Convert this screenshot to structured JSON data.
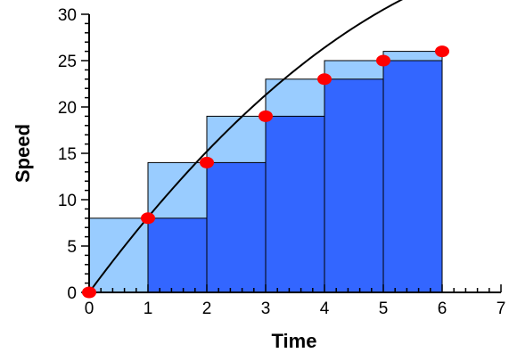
{
  "chart_data": {
    "type": "bar",
    "xlabel": "Time",
    "ylabel": "Speed",
    "xlim": [
      0,
      7
    ],
    "ylim": [
      0,
      30
    ],
    "x_ticks": [
      0,
      1,
      2,
      3,
      4,
      5,
      6,
      7
    ],
    "y_ticks": [
      0,
      5,
      10,
      15,
      20,
      25,
      30
    ],
    "grid": false,
    "bar_intervals": [
      [
        0,
        1
      ],
      [
        1,
        2
      ],
      [
        2,
        3
      ],
      [
        3,
        4
      ],
      [
        4,
        5
      ],
      [
        5,
        6
      ]
    ],
    "series": [
      {
        "values": [
          8,
          14,
          19,
          23,
          25,
          26
        ]
      },
      {
        "values": [
          0,
          8,
          14,
          19,
          23,
          25
        ]
      }
    ],
    "points": [
      {
        "x": 0,
        "y": 0
      },
      {
        "x": 1,
        "y": 8
      },
      {
        "x": 2,
        "y": 14
      },
      {
        "x": 3,
        "y": 19
      },
      {
        "x": 4,
        "y": 23
      },
      {
        "x": 5,
        "y": 25
      },
      {
        "x": 6,
        "y": 26
      }
    ],
    "curve": {
      "y0": 0,
      "k": 8.6,
      "a": 0.5
    },
    "colors": {
      "upper_bar": "#99ccff",
      "lower_bar": "#3366ff",
      "bar_edge": "#000000",
      "point": "#ff0000",
      "curve": "#000000",
      "axis": "#000000"
    }
  }
}
